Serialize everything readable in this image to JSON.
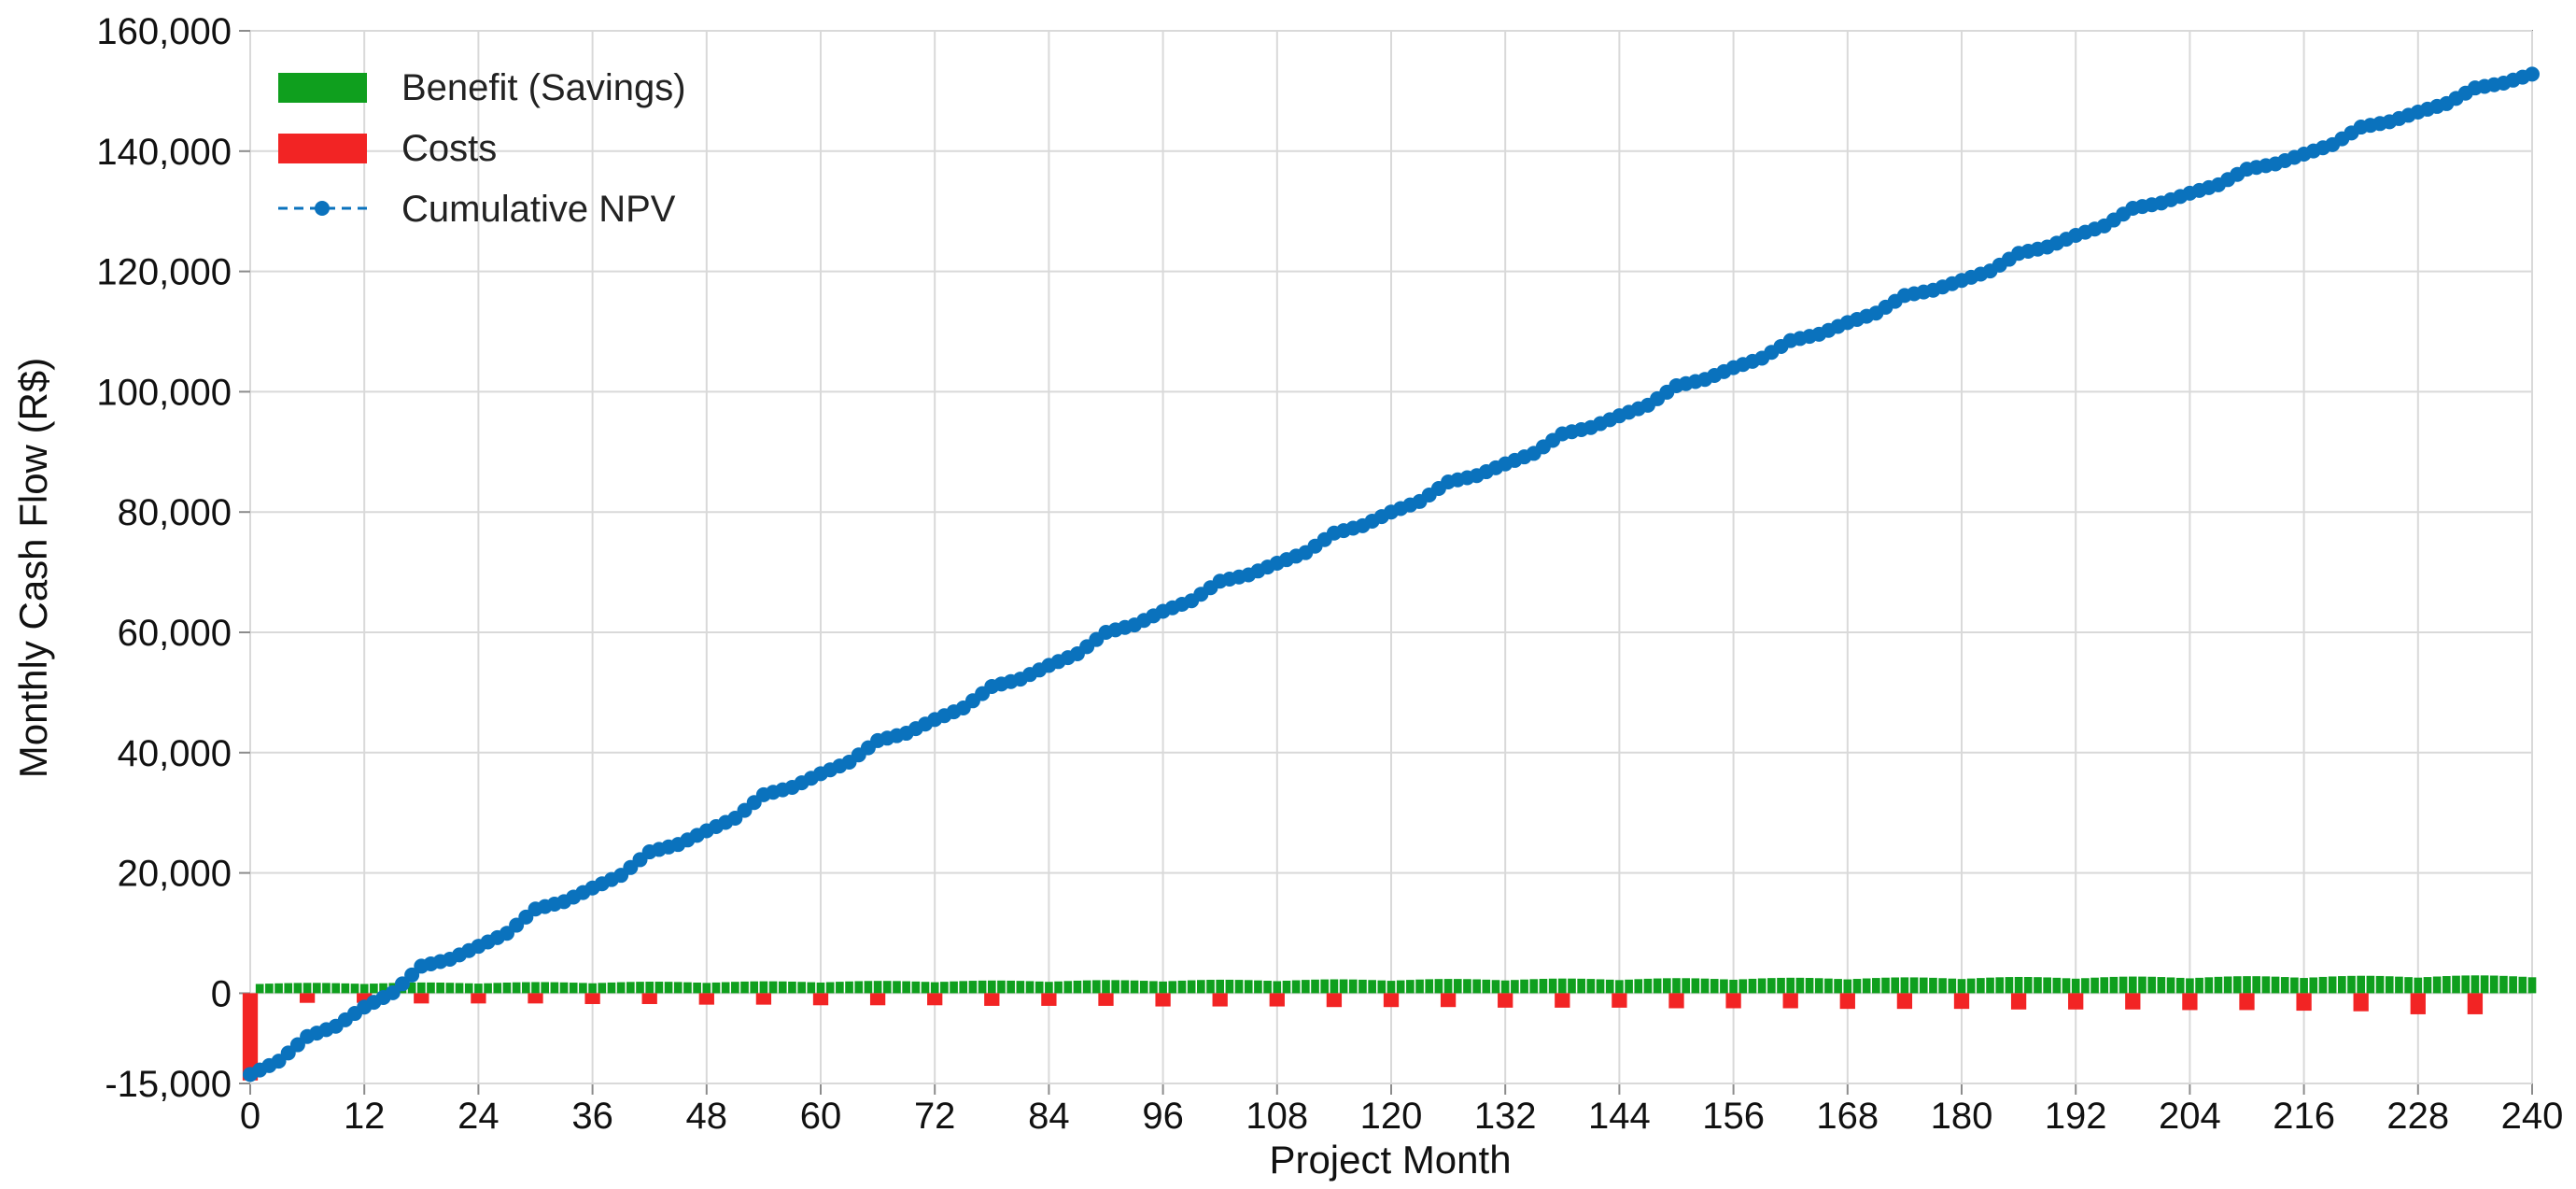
{
  "colors": {
    "benefit": "#0f9f1e",
    "cost": "#f22424",
    "npv": "#0a72bd",
    "grid": "#d9d9d9",
    "axis": "#8c8c8c"
  },
  "chart_data": {
    "type": "bar+line",
    "xlabel": "Project Month",
    "ylabel": "Monthly Cash Flow (R$)",
    "xlim": [
      0,
      240
    ],
    "ylim": [
      -15000,
      160000
    ],
    "x_ticks": [
      0,
      12,
      24,
      36,
      48,
      60,
      72,
      84,
      96,
      108,
      120,
      132,
      144,
      156,
      168,
      180,
      192,
      204,
      216,
      228,
      240
    ],
    "x_tick_labels": [
      "0",
      "12",
      "24",
      "36",
      "48",
      "60",
      "72",
      "84",
      "96",
      "108",
      "120",
      "132",
      "144",
      "156",
      "168",
      "180",
      "192",
      "204",
      "216",
      "228",
      "240"
    ],
    "y_ticks": [
      -15000,
      0,
      20000,
      40000,
      60000,
      80000,
      100000,
      120000,
      140000,
      160000
    ],
    "y_tick_labels": [
      "-15,000",
      "0",
      "20,000",
      "40,000",
      "60,000",
      "80,000",
      "100,000",
      "120,000",
      "140,000",
      "160,000"
    ],
    "grid": true,
    "legend_position": "top-left",
    "legend": [
      {
        "label": "Benefit (Savings)",
        "marker": "bar",
        "series": "benefit"
      },
      {
        "label": "Costs",
        "marker": "bar",
        "series": "cost"
      },
      {
        "label": "Cumulative NPV",
        "marker": "dashed-line-with-dot",
        "series": "npv"
      }
    ],
    "benefit": {
      "months": "1-240",
      "typical_range": [
        700,
        3000
      ],
      "note": "monthly savings bars, rising gradually with seasonal variation"
    },
    "costs": [
      {
        "x": 0,
        "y": -14500
      },
      {
        "x": 6,
        "y": -1600
      },
      {
        "x": 12,
        "y": -1600
      },
      {
        "x": 18,
        "y": -1700
      },
      {
        "x": 24,
        "y": -1700
      },
      {
        "x": 30,
        "y": -1700
      },
      {
        "x": 36,
        "y": -1800
      },
      {
        "x": 42,
        "y": -1800
      },
      {
        "x": 48,
        "y": -1900
      },
      {
        "x": 54,
        "y": -1900
      },
      {
        "x": 60,
        "y": -2000
      },
      {
        "x": 66,
        "y": -2000
      },
      {
        "x": 72,
        "y": -2000
      },
      {
        "x": 78,
        "y": -2100
      },
      {
        "x": 84,
        "y": -2100
      },
      {
        "x": 90,
        "y": -2100
      },
      {
        "x": 96,
        "y": -2200
      },
      {
        "x": 102,
        "y": -2200
      },
      {
        "x": 108,
        "y": -2200
      },
      {
        "x": 114,
        "y": -2300
      },
      {
        "x": 120,
        "y": -2300
      },
      {
        "x": 126,
        "y": -2300
      },
      {
        "x": 132,
        "y": -2400
      },
      {
        "x": 138,
        "y": -2400
      },
      {
        "x": 144,
        "y": -2400
      },
      {
        "x": 150,
        "y": -2500
      },
      {
        "x": 156,
        "y": -2500
      },
      {
        "x": 162,
        "y": -2500
      },
      {
        "x": 168,
        "y": -2600
      },
      {
        "x": 174,
        "y": -2600
      },
      {
        "x": 180,
        "y": -2600
      },
      {
        "x": 186,
        "y": -2700
      },
      {
        "x": 192,
        "y": -2700
      },
      {
        "x": 198,
        "y": -2700
      },
      {
        "x": 204,
        "y": -2800
      },
      {
        "x": 210,
        "y": -2800
      },
      {
        "x": 216,
        "y": -2900
      },
      {
        "x": 222,
        "y": -3000
      },
      {
        "x": 228,
        "y": -3500
      },
      {
        "x": 234,
        "y": -3500
      }
    ],
    "cumulative_npv": [
      {
        "x": 0,
        "y": -13500
      },
      {
        "x": 6,
        "y": -7200
      },
      {
        "x": 12,
        "y": -2300
      },
      {
        "x": 18,
        "y": 4500
      },
      {
        "x": 24,
        "y": 7800
      },
      {
        "x": 30,
        "y": 14000
      },
      {
        "x": 36,
        "y": 17500
      },
      {
        "x": 42,
        "y": 23500
      },
      {
        "x": 48,
        "y": 27000
      },
      {
        "x": 54,
        "y": 33000
      },
      {
        "x": 60,
        "y": 36500
      },
      {
        "x": 66,
        "y": 42000
      },
      {
        "x": 72,
        "y": 45500
      },
      {
        "x": 78,
        "y": 51000
      },
      {
        "x": 84,
        "y": 54500
      },
      {
        "x": 90,
        "y": 60000
      },
      {
        "x": 96,
        "y": 63500
      },
      {
        "x": 102,
        "y": 68500
      },
      {
        "x": 108,
        "y": 71500
      },
      {
        "x": 114,
        "y": 76500
      },
      {
        "x": 120,
        "y": 80000
      },
      {
        "x": 126,
        "y": 85000
      },
      {
        "x": 132,
        "y": 88000
      },
      {
        "x": 138,
        "y": 93000
      },
      {
        "x": 144,
        "y": 96000
      },
      {
        "x": 150,
        "y": 101000
      },
      {
        "x": 156,
        "y": 104000
      },
      {
        "x": 162,
        "y": 108500
      },
      {
        "x": 168,
        "y": 111500
      },
      {
        "x": 174,
        "y": 116000
      },
      {
        "x": 180,
        "y": 118500
      },
      {
        "x": 186,
        "y": 123000
      },
      {
        "x": 192,
        "y": 126000
      },
      {
        "x": 198,
        "y": 130500
      },
      {
        "x": 204,
        "y": 133000
      },
      {
        "x": 210,
        "y": 137000
      },
      {
        "x": 216,
        "y": 139500
      },
      {
        "x": 222,
        "y": 144000
      },
      {
        "x": 228,
        "y": 146500
      },
      {
        "x": 234,
        "y": 150500
      },
      {
        "x": 240,
        "y": 152800
      }
    ]
  }
}
